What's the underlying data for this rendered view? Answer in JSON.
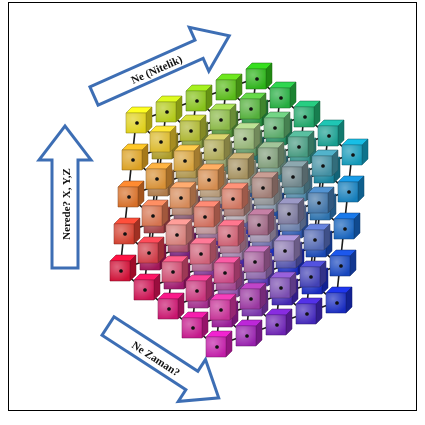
{
  "labels": {
    "what": "Ne (Nitelik)",
    "where": "Nerede? X, Y,Z",
    "when": "Ne Zaman?"
  },
  "colors": {
    "arrow_fill": "#ffffff",
    "arrow_stroke": "#3d6eb4",
    "rod": "#1b1b1b",
    "border": "#000000"
  },
  "cube_palette": {
    "top_left_front": "#f2e21c",
    "bottom_left_front": "#e0103a",
    "bottom_right_front": "#d21eb6",
    "top_back": "#2fc21a",
    "right_back": "#14a5c8",
    "far_bottom_right": "#1a2fd0",
    "center_core": "#fbfbfb"
  }
}
